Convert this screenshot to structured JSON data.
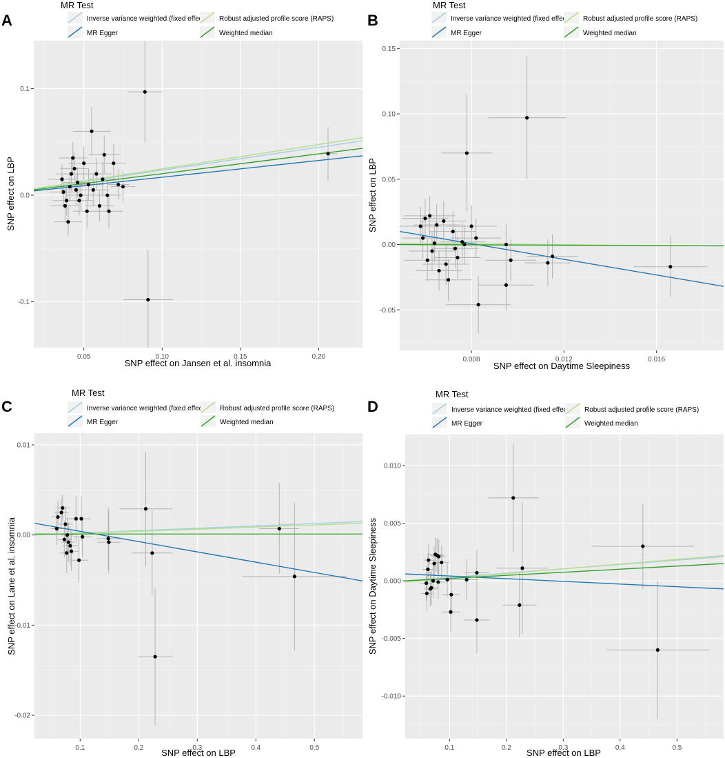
{
  "colors": {
    "panel_bg": "#ebebeb",
    "grid_major": "#ffffff",
    "point": "#000000",
    "errorbar": "#b3b3b3",
    "ivw": "#a6cee3",
    "egger": "#1f78b4",
    "raps": "#b2df8a",
    "wmedian": "#33a02c"
  },
  "chart_data": [
    {
      "panel": "A",
      "type": "scatter",
      "legend_title": "MR Test",
      "legend": [
        "Inverse variance weighted (fixed effects)",
        "Robust adjusted profile score (RAPS)",
        "MR Egger",
        "Weighted median"
      ],
      "xlabel": "SNP effect on Jansen et al. insomnia",
      "ylabel": "SNP effect on LBP",
      "xlim": [
        0.018,
        0.228
      ],
      "ylim": [
        -0.143,
        0.145
      ],
      "xticks": [
        0.05,
        0.1,
        0.15,
        0.2
      ],
      "xtick_labels": [
        "0.05",
        "0.10",
        "0.15",
        "0.20"
      ],
      "yticks": [
        -0.1,
        0.0,
        0.1
      ],
      "ytick_labels": [
        "-0.1",
        "0.0",
        "0.1"
      ],
      "points": [
        {
          "x": 0.089,
          "y": 0.097,
          "xe": 0.011,
          "ye": 0.048
        },
        {
          "x": 0.091,
          "y": -0.098,
          "xe": 0.016,
          "ye": 0.047
        },
        {
          "x": 0.206,
          "y": 0.039,
          "xe": 0.006,
          "ye": 0.025
        },
        {
          "x": 0.055,
          "y": 0.06,
          "xe": 0.012,
          "ye": 0.023
        },
        {
          "x": 0.063,
          "y": 0.038,
          "xe": 0.01,
          "ye": 0.018
        },
        {
          "x": 0.069,
          "y": 0.03,
          "xe": 0.008,
          "ye": 0.018
        },
        {
          "x": 0.075,
          "y": 0.008,
          "xe": 0.008,
          "ye": 0.015
        },
        {
          "x": 0.066,
          "y": -0.015,
          "xe": 0.009,
          "ye": 0.016
        },
        {
          "x": 0.072,
          "y": 0.01,
          "xe": 0.007,
          "ye": 0.014
        },
        {
          "x": 0.042,
          "y": 0.02,
          "xe": 0.01,
          "ye": 0.016
        },
        {
          "x": 0.045,
          "y": 0.005,
          "xe": 0.01,
          "ye": 0.015
        },
        {
          "x": 0.038,
          "y": -0.01,
          "xe": 0.009,
          "ye": 0.016
        },
        {
          "x": 0.04,
          "y": -0.025,
          "xe": 0.009,
          "ye": 0.014
        },
        {
          "x": 0.05,
          "y": 0.03,
          "xe": 0.01,
          "ye": 0.016
        },
        {
          "x": 0.053,
          "y": 0.01,
          "xe": 0.01,
          "ye": 0.015
        },
        {
          "x": 0.047,
          "y": -0.005,
          "xe": 0.009,
          "ye": 0.014
        },
        {
          "x": 0.058,
          "y": 0.02,
          "xe": 0.01,
          "ye": 0.015
        },
        {
          "x": 0.06,
          "y": -0.01,
          "xe": 0.009,
          "ye": 0.015
        },
        {
          "x": 0.036,
          "y": 0.015,
          "xe": 0.009,
          "ye": 0.014
        },
        {
          "x": 0.043,
          "y": 0.035,
          "xe": 0.009,
          "ye": 0.015
        },
        {
          "x": 0.048,
          "y": 0.0,
          "xe": 0.009,
          "ye": 0.014
        },
        {
          "x": 0.052,
          "y": -0.015,
          "xe": 0.009,
          "ye": 0.016
        },
        {
          "x": 0.041,
          "y": 0.008,
          "xe": 0.009,
          "ye": 0.014
        },
        {
          "x": 0.039,
          "y": -0.005,
          "xe": 0.009,
          "ye": 0.014
        },
        {
          "x": 0.044,
          "y": 0.025,
          "xe": 0.009,
          "ye": 0.015
        },
        {
          "x": 0.056,
          "y": 0.005,
          "xe": 0.01,
          "ye": 0.015
        },
        {
          "x": 0.062,
          "y": 0.015,
          "xe": 0.009,
          "ye": 0.016
        },
        {
          "x": 0.065,
          "y": 0.0,
          "xe": 0.009,
          "ye": 0.015
        },
        {
          "x": 0.037,
          "y": 0.003,
          "xe": 0.009,
          "ye": 0.014
        },
        {
          "x": 0.046,
          "y": 0.012,
          "xe": 0.009,
          "ye": 0.014
        }
      ],
      "lines": [
        {
          "method": "ivw",
          "x": [
            0.018,
            0.228
          ],
          "y": [
            0.006,
            0.051
          ]
        },
        {
          "method": "raps",
          "x": [
            0.018,
            0.228
          ],
          "y": [
            0.006,
            0.054
          ]
        },
        {
          "method": "egger",
          "x": [
            0.018,
            0.228
          ],
          "y": [
            0.004,
            0.037
          ]
        },
        {
          "method": "wmedian",
          "x": [
            0.018,
            0.228
          ],
          "y": [
            0.005,
            0.044
          ]
        }
      ]
    },
    {
      "panel": "B",
      "type": "scatter",
      "legend_title": "MR Test",
      "legend": [
        "Inverse variance weighted (fixed effects)",
        "Robust adjusted profile score (RAPS)",
        "MR Egger",
        "Weighted median"
      ],
      "xlabel": "SNP effect on Daytime Sleepiness",
      "ylabel": "SNP effect on LBP",
      "xlim": [
        0.0049,
        0.0189
      ],
      "ylim": [
        -0.081,
        0.156
      ],
      "xticks": [
        0.008,
        0.012,
        0.016
      ],
      "xtick_labels": [
        "0.008",
        "0.012",
        "0.016"
      ],
      "yticks": [
        -0.05,
        0.0,
        0.05,
        0.1,
        0.15
      ],
      "ytick_labels": [
        "-0.05",
        "0.00",
        "0.05",
        "0.10",
        "0.15"
      ],
      "points": [
        {
          "x": 0.0104,
          "y": 0.097,
          "xe": 0.0017,
          "ye": 0.047
        },
        {
          "x": 0.0078,
          "y": 0.07,
          "xe": 0.0011,
          "ye": 0.045
        },
        {
          "x": 0.0083,
          "y": -0.046,
          "xe": 0.0014,
          "ye": 0.022
        },
        {
          "x": 0.0166,
          "y": -0.017,
          "xe": 0.0016,
          "ye": 0.023
        },
        {
          "x": 0.0095,
          "y": -0.031,
          "xe": 0.0012,
          "ye": 0.02
        },
        {
          "x": 0.0113,
          "y": -0.014,
          "xe": 0.001,
          "ye": 0.018
        },
        {
          "x": 0.0115,
          "y": -0.009,
          "xe": 0.0011,
          "ye": 0.017
        },
        {
          "x": 0.0097,
          "y": -0.012,
          "xe": 0.0011,
          "ye": 0.016
        },
        {
          "x": 0.006,
          "y": 0.02,
          "xe": 0.001,
          "ye": 0.015
        },
        {
          "x": 0.0062,
          "y": 0.022,
          "xe": 0.0011,
          "ye": 0.015
        },
        {
          "x": 0.0065,
          "y": 0.015,
          "xe": 0.001,
          "ye": 0.016
        },
        {
          "x": 0.0068,
          "y": 0.018,
          "xe": 0.001,
          "ye": 0.015
        },
        {
          "x": 0.0059,
          "y": 0.005,
          "xe": 0.0009,
          "ye": 0.016
        },
        {
          "x": 0.0063,
          "y": -0.005,
          "xe": 0.001,
          "ye": 0.015
        },
        {
          "x": 0.0061,
          "y": -0.012,
          "xe": 0.001,
          "ye": 0.016
        },
        {
          "x": 0.0066,
          "y": -0.02,
          "xe": 0.001,
          "ye": 0.015
        },
        {
          "x": 0.007,
          "y": -0.027,
          "xe": 0.001,
          "ye": 0.016
        },
        {
          "x": 0.0072,
          "y": 0.01,
          "xe": 0.001,
          "ye": 0.015
        },
        {
          "x": 0.0074,
          "y": -0.01,
          "xe": 0.001,
          "ye": 0.016
        },
        {
          "x": 0.0076,
          "y": 0.002,
          "xe": 0.001,
          "ye": 0.015
        },
        {
          "x": 0.008,
          "y": 0.014,
          "xe": 0.0011,
          "ye": 0.016
        },
        {
          "x": 0.0082,
          "y": 0.005,
          "xe": 0.0011,
          "ye": 0.015
        },
        {
          "x": 0.0064,
          "y": 0.001,
          "xe": 0.001,
          "ye": 0.015
        },
        {
          "x": 0.0069,
          "y": -0.015,
          "xe": 0.001,
          "ye": 0.016
        },
        {
          "x": 0.0058,
          "y": 0.014,
          "xe": 0.0009,
          "ye": 0.015
        },
        {
          "x": 0.0073,
          "y": -0.003,
          "xe": 0.001,
          "ye": 0.015
        },
        {
          "x": 0.0077,
          "y": 0.0,
          "xe": 0.001,
          "ye": 0.015
        },
        {
          "x": 0.0095,
          "y": 0.0,
          "xe": 0.0011,
          "ye": 0.015
        }
      ],
      "lines": [
        {
          "method": "ivw",
          "x": [
            0.0049,
            0.0189
          ],
          "y": [
            0.0,
            -0.001
          ]
        },
        {
          "method": "raps",
          "x": [
            0.0049,
            0.0189
          ],
          "y": [
            0.001,
            -0.001
          ]
        },
        {
          "method": "egger",
          "x": [
            0.0049,
            0.0189
          ],
          "y": [
            0.01,
            -0.032
          ]
        },
        {
          "method": "wmedian",
          "x": [
            0.0049,
            0.0189
          ],
          "y": [
            0.0,
            -0.001
          ]
        }
      ]
    },
    {
      "panel": "C",
      "type": "scatter",
      "legend_title": "MR Test",
      "legend": [
        "Inverse variance weighted (fixed effects)",
        "Robust adjusted profile score (RAPS)",
        "MR Egger",
        "Weighted median"
      ],
      "xlabel": "SNP effect on LBP",
      "ylabel": "SNP effect on Lane et al. insomnia",
      "xlim": [
        0.022,
        0.582
      ],
      "ylim": [
        -0.0226,
        0.0113
      ],
      "xticks": [
        0.1,
        0.2,
        0.3,
        0.4,
        0.5
      ],
      "xtick_labels": [
        "0.1",
        "0.2",
        "0.3",
        "0.4",
        "0.5"
      ],
      "yticks": [
        -0.02,
        -0.01,
        0.0,
        0.01
      ],
      "ytick_labels": [
        "-0.02",
        "-0.01",
        "0.00",
        "0.01"
      ],
      "points": [
        {
          "x": 0.212,
          "y": 0.0029,
          "xe": 0.045,
          "ye": 0.0063
        },
        {
          "x": 0.223,
          "y": -0.002,
          "xe": 0.035,
          "ye": 0.0047
        },
        {
          "x": 0.228,
          "y": -0.0135,
          "xe": 0.03,
          "ye": 0.0076
        },
        {
          "x": 0.44,
          "y": 0.0007,
          "xe": 0.034,
          "ye": 0.005
        },
        {
          "x": 0.466,
          "y": -0.0046,
          "xe": 0.09,
          "ye": 0.0082
        },
        {
          "x": 0.148,
          "y": -0.0004,
          "xe": 0.02,
          "ye": 0.0035
        },
        {
          "x": 0.149,
          "y": -0.0008,
          "xe": 0.02,
          "ye": 0.0035
        },
        {
          "x": 0.102,
          "y": 0.0018,
          "xe": 0.016,
          "ye": 0.0025
        },
        {
          "x": 0.093,
          "y": 0.0018,
          "xe": 0.016,
          "ye": 0.0025
        },
        {
          "x": 0.098,
          "y": -0.0028,
          "xe": 0.016,
          "ye": 0.0025
        },
        {
          "x": 0.07,
          "y": 0.003,
          "xe": 0.012,
          "ye": 0.0015
        },
        {
          "x": 0.068,
          "y": 0.0025,
          "xe": 0.012,
          "ye": 0.0016
        },
        {
          "x": 0.062,
          "y": 0.002,
          "xe": 0.011,
          "ye": 0.0018
        },
        {
          "x": 0.06,
          "y": 0.0007,
          "xe": 0.01,
          "ye": 0.0018
        },
        {
          "x": 0.075,
          "y": 0.0012,
          "xe": 0.012,
          "ye": 0.002
        },
        {
          "x": 0.078,
          "y": 0.0,
          "xe": 0.012,
          "ye": 0.002
        },
        {
          "x": 0.08,
          "y": -0.0008,
          "xe": 0.012,
          "ye": 0.0022
        },
        {
          "x": 0.083,
          "y": -0.0012,
          "xe": 0.013,
          "ye": 0.0022
        },
        {
          "x": 0.077,
          "y": -0.002,
          "xe": 0.012,
          "ye": 0.0022
        },
        {
          "x": 0.085,
          "y": -0.0018,
          "xe": 0.013,
          "ye": 0.0022
        },
        {
          "x": 0.104,
          "y": -0.0002,
          "xe": 0.016,
          "ye": 0.0022
        },
        {
          "x": 0.073,
          "y": -0.0005,
          "xe": 0.012,
          "ye": 0.002
        }
      ],
      "lines": [
        {
          "method": "ivw",
          "x": [
            0.022,
            0.582
          ],
          "y": [
            0.0,
            0.0015
          ]
        },
        {
          "method": "raps",
          "x": [
            0.022,
            0.582
          ],
          "y": [
            0.0,
            0.0013
          ]
        },
        {
          "method": "egger",
          "x": [
            0.022,
            0.582
          ],
          "y": [
            0.0013,
            -0.0051
          ]
        },
        {
          "method": "wmedian",
          "x": [
            0.022,
            0.582
          ],
          "y": [
            0.0001,
            0.0001
          ]
        }
      ]
    },
    {
      "panel": "D",
      "type": "scatter",
      "legend_title": "MR Test",
      "legend": [
        "Inverse variance weighted (fixed effects)",
        "Robust adjusted profile score (RAPS)",
        "MR Egger",
        "Weighted median"
      ],
      "xlabel": "SNP effect on LBP",
      "ylabel": "SNP effect on Daytime Sleepiness",
      "xlim": [
        0.022,
        0.582
      ],
      "ylim": [
        -0.0137,
        0.0127
      ],
      "xticks": [
        0.1,
        0.2,
        0.3,
        0.4,
        0.5
      ],
      "xtick_labels": [
        "0.1",
        "0.2",
        "0.3",
        "0.4",
        "0.5"
      ],
      "yticks": [
        -0.01,
        -0.005,
        0.0,
        0.005,
        0.01
      ],
      "ytick_labels": [
        "-0.010",
        "-0.005",
        "0.000",
        "0.005",
        "0.010"
      ],
      "points": [
        {
          "x": 0.212,
          "y": 0.0072,
          "xe": 0.045,
          "ye": 0.0047
        },
        {
          "x": 0.228,
          "y": 0.0011,
          "xe": 0.045,
          "ye": 0.0057
        },
        {
          "x": 0.223,
          "y": -0.0021,
          "xe": 0.03,
          "ye": 0.0028
        },
        {
          "x": 0.44,
          "y": 0.003,
          "xe": 0.09,
          "ye": 0.0037
        },
        {
          "x": 0.466,
          "y": -0.006,
          "xe": 0.09,
          "ye": 0.006
        },
        {
          "x": 0.148,
          "y": -0.0034,
          "xe": 0.022,
          "ye": 0.0029
        },
        {
          "x": 0.148,
          "y": 0.0007,
          "xe": 0.022,
          "ye": 0.002
        },
        {
          "x": 0.13,
          "y": 0.0001,
          "xe": 0.02,
          "ye": 0.0018
        },
        {
          "x": 0.102,
          "y": -0.0027,
          "xe": 0.016,
          "ye": 0.0017
        },
        {
          "x": 0.103,
          "y": -0.0012,
          "xe": 0.016,
          "ye": 0.0017
        },
        {
          "x": 0.096,
          "y": 0.0001,
          "xe": 0.015,
          "ye": 0.0015
        },
        {
          "x": 0.06,
          "y": -0.0011,
          "xe": 0.01,
          "ye": 0.0015
        },
        {
          "x": 0.059,
          "y": -0.0002,
          "xe": 0.01,
          "ye": 0.0015
        },
        {
          "x": 0.062,
          "y": 0.001,
          "xe": 0.01,
          "ye": 0.0014
        },
        {
          "x": 0.063,
          "y": 0.0018,
          "xe": 0.01,
          "ye": 0.0014
        },
        {
          "x": 0.068,
          "y": -0.0006,
          "xe": 0.011,
          "ye": 0.0015
        },
        {
          "x": 0.071,
          "y": 0.0,
          "xe": 0.011,
          "ye": 0.0015
        },
        {
          "x": 0.073,
          "y": 0.0015,
          "xe": 0.011,
          "ye": 0.0015
        },
        {
          "x": 0.075,
          "y": 0.0023,
          "xe": 0.012,
          "ye": 0.0015
        },
        {
          "x": 0.078,
          "y": 0.0022,
          "xe": 0.012,
          "ye": 0.0015
        },
        {
          "x": 0.081,
          "y": 0.0021,
          "xe": 0.012,
          "ye": 0.0015
        },
        {
          "x": 0.08,
          "y": -0.0001,
          "xe": 0.012,
          "ye": 0.0015
        },
        {
          "x": 0.086,
          "y": 0.0016,
          "xe": 0.013,
          "ye": 0.0015
        },
        {
          "x": 0.066,
          "y": -0.0007,
          "xe": 0.011,
          "ye": 0.0015
        }
      ],
      "lines": [
        {
          "method": "ivw",
          "x": [
            0.022,
            0.582
          ],
          "y": [
            0.0,
            0.0021
          ]
        },
        {
          "method": "raps",
          "x": [
            0.022,
            0.582
          ],
          "y": [
            -0.0001,
            0.0022
          ]
        },
        {
          "method": "egger",
          "x": [
            0.022,
            0.582
          ],
          "y": [
            0.0006,
            -0.0007
          ]
        },
        {
          "method": "wmedian",
          "x": [
            0.022,
            0.582
          ],
          "y": [
            0.0,
            0.0015
          ]
        }
      ]
    }
  ]
}
